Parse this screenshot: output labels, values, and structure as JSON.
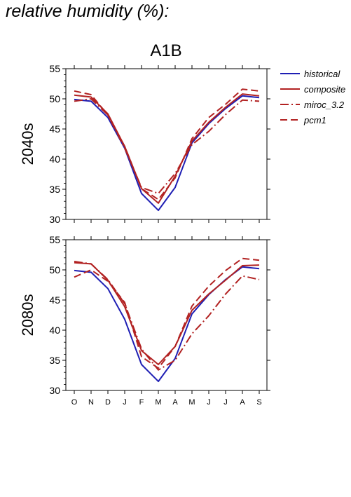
{
  "page": {
    "title": "relative humidity (%):"
  },
  "scenario": "A1B",
  "legend": [
    {
      "name": "historical",
      "color": "#1f1fb4",
      "dash": ""
    },
    {
      "name": "composite",
      "color": "#b22222",
      "dash": ""
    },
    {
      "name": "miroc_3.2",
      "color": "#b22222",
      "dash": "12,4,2,4"
    },
    {
      "name": "pcm1",
      "color": "#b22222",
      "dash": "10,5"
    }
  ],
  "chart_data": [
    {
      "type": "line",
      "title": "A1B",
      "ylabel": "2040s",
      "categories": [
        "O",
        "N",
        "D",
        "J",
        "F",
        "M",
        "A",
        "M",
        "J",
        "J",
        "A",
        "S"
      ],
      "ylim": [
        30,
        55
      ],
      "yticks": [
        30,
        35,
        40,
        45,
        50,
        55
      ],
      "series": [
        {
          "name": "historical",
          "values": [
            49.9,
            49.6,
            46.9,
            41.8,
            34.3,
            31.5,
            35.3,
            42.7,
            45.9,
            48.4,
            50.5,
            50.2
          ]
        },
        {
          "name": "composite",
          "values": [
            50.6,
            50.3,
            47.5,
            42.1,
            35.1,
            32.7,
            37.2,
            43.0,
            46.1,
            48.6,
            50.8,
            50.5
          ]
        },
        {
          "name": "miroc_3.2",
          "values": [
            49.6,
            50.0,
            47.3,
            41.8,
            35.3,
            34.3,
            37.6,
            42.4,
            44.6,
            47.4,
            49.8,
            49.6
          ]
        },
        {
          "name": "pcm1",
          "values": [
            51.3,
            50.7,
            47.3,
            42.1,
            35.1,
            33.3,
            36.9,
            43.4,
            46.9,
            49.1,
            51.6,
            51.3
          ]
        }
      ]
    },
    {
      "type": "line",
      "title": "",
      "ylabel": "2080s",
      "categories": [
        "O",
        "N",
        "D",
        "J",
        "F",
        "M",
        "A",
        "M",
        "J",
        "J",
        "A",
        "S"
      ],
      "ylim": [
        30,
        55
      ],
      "yticks": [
        30,
        35,
        40,
        45,
        50,
        55
      ],
      "series": [
        {
          "name": "historical",
          "values": [
            49.9,
            49.6,
            46.9,
            41.8,
            34.3,
            31.5,
            35.3,
            42.7,
            45.9,
            48.4,
            50.5,
            50.2
          ]
        },
        {
          "name": "composite",
          "values": [
            51.2,
            51.0,
            48.3,
            43.9,
            36.6,
            34.3,
            37.3,
            43.3,
            46.0,
            48.3,
            50.7,
            50.8
          ]
        },
        {
          "name": "miroc_3.2",
          "values": [
            51.4,
            51.0,
            48.4,
            44.4,
            36.9,
            33.4,
            35.0,
            39.4,
            42.4,
            46.0,
            49.0,
            48.4
          ]
        },
        {
          "name": "pcm1",
          "values": [
            48.8,
            50.0,
            48.1,
            44.6,
            35.6,
            33.7,
            37.3,
            44.0,
            47.3,
            49.9,
            51.9,
            51.6
          ]
        }
      ]
    }
  ]
}
